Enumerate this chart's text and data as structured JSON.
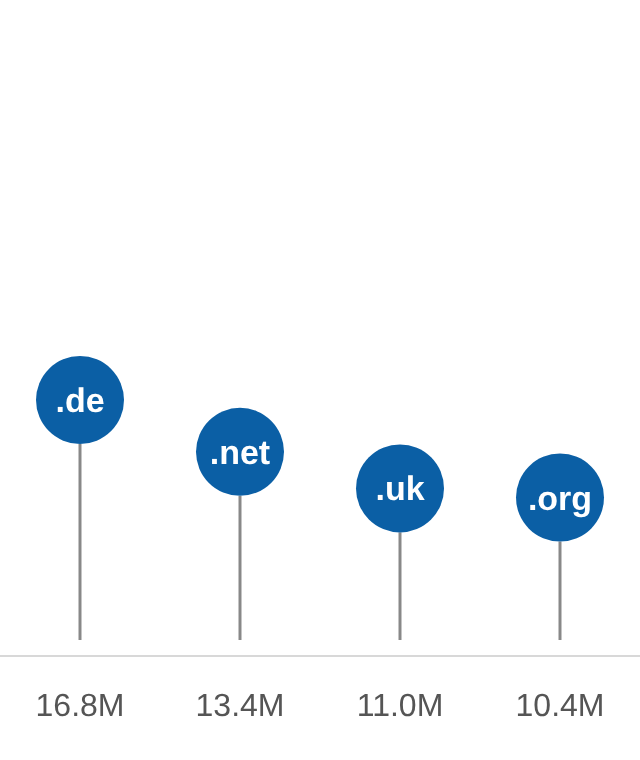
{
  "chart_data": {
    "type": "lollipop",
    "categories": [
      ".de",
      ".net",
      ".uk",
      ".org"
    ],
    "values": [
      16.8,
      13.4,
      11.0,
      10.4
    ],
    "value_labels": [
      "16.8M",
      "13.4M",
      "11.0M",
      "10.4M"
    ],
    "color": "#0b5fa5"
  }
}
